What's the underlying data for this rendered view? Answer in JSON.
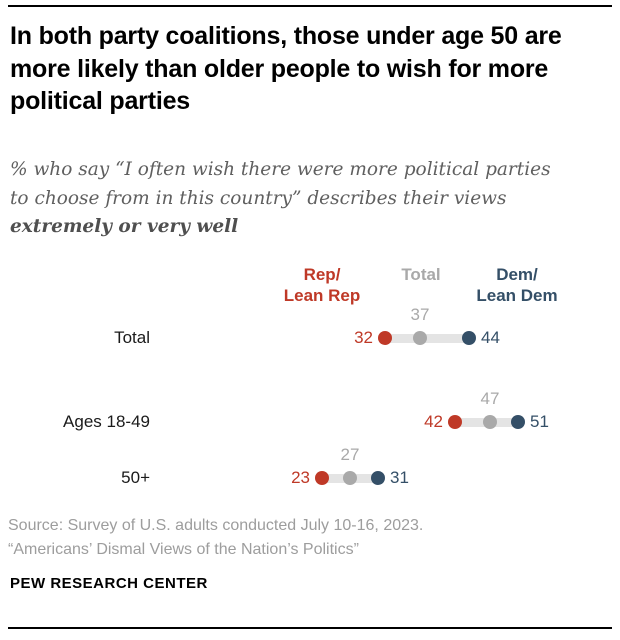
{
  "header": {
    "title": "In both party coalitions, those under age 50 are more likely than older people to wish for more political parties",
    "subtitle_lines": [
      "% who say “I often wish there were more political parties",
      "to choose from in this country” describes their views"
    ],
    "subtitle_bold": "extremely or very well"
  },
  "legend": {
    "rep_line1": "Rep/",
    "rep_line2": "Lean Rep",
    "total": "Total",
    "dem_line1": "Dem/",
    "dem_line2": "Lean Dem"
  },
  "chart_data": {
    "type": "dot-plot",
    "series": [
      "Rep/Lean Rep",
      "Total",
      "Dem/Lean Dem"
    ],
    "unit": "percent",
    "rows": [
      {
        "label": "Total",
        "rep": 32,
        "total": 37,
        "dem": 44
      },
      {
        "label": "Ages 18-49",
        "rep": 42,
        "total": 47,
        "dem": 51
      },
      {
        "label": "50+",
        "rep": 23,
        "total": 27,
        "dem": 31
      }
    ],
    "colors": {
      "rep": "#bf3927",
      "total": "#a9a9a9",
      "dem": "#344f67",
      "track": "#e4e4e4"
    }
  },
  "footer": {
    "source_line1": "Source: Survey of U.S. adults conducted July 10-16, 2023.",
    "source_line2": "“Americans’ Dismal Views of the Nation’s Politics”",
    "brand": "PEW RESEARCH CENTER"
  }
}
